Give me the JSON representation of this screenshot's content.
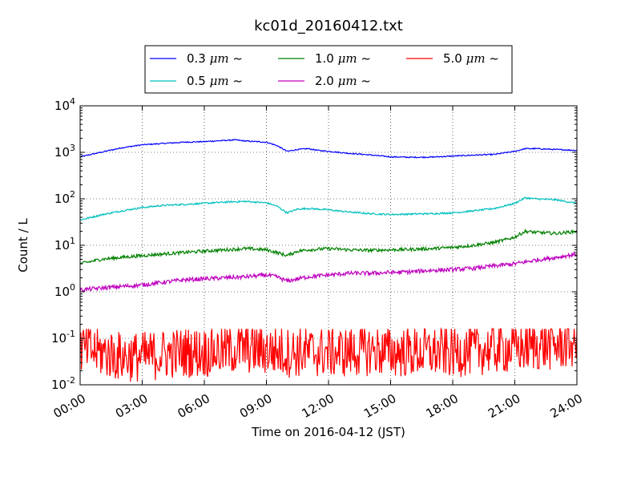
{
  "chart_data": {
    "type": "line",
    "title": "kc01d_20160412.txt",
    "xlabel": "Time on 2016-04-12 (JST)",
    "ylabel": "Count / L",
    "xlim": [
      0,
      24
    ],
    "ylim": [
      0.01,
      10000
    ],
    "yscale": "log",
    "x_ticks": [
      0,
      3,
      6,
      9,
      12,
      15,
      18,
      21,
      24
    ],
    "x_tick_labels": [
      "00:00",
      "03:00",
      "06:00",
      "09:00",
      "12:00",
      "15:00",
      "18:00",
      "21:00",
      "24:00"
    ],
    "y_ticks": [
      0.01,
      0.1,
      1,
      10,
      100,
      1000,
      10000
    ],
    "y_tick_labels": [
      {
        "base": "10",
        "exp": "-2"
      },
      {
        "base": "10",
        "exp": "-1"
      },
      {
        "base": "10",
        "exp": "0"
      },
      {
        "base": "10",
        "exp": "1"
      },
      {
        "base": "10",
        "exp": "2"
      },
      {
        "base": "10",
        "exp": "3"
      },
      {
        "base": "10",
        "exp": "4"
      }
    ],
    "grid": true,
    "legend_position": "top-center (above plot)",
    "series": [
      {
        "name": "0.3 μm ~",
        "legend_label": {
          "value": "0.3 ",
          "unit": "μm",
          "tail": " ~"
        },
        "color": "#0000ff",
        "x": [
          0,
          1,
          2,
          3,
          4,
          5,
          6,
          7,
          7.5,
          8,
          9,
          9.5,
          10,
          10.5,
          11,
          11.5,
          12,
          13,
          14,
          15,
          16,
          17,
          18,
          19,
          20,
          21,
          21.5,
          22,
          23,
          24
        ],
        "y": [
          800,
          1000,
          1250,
          1450,
          1550,
          1650,
          1700,
          1800,
          1850,
          1750,
          1650,
          1400,
          1050,
          1150,
          1200,
          1100,
          1050,
          950,
          880,
          800,
          780,
          790,
          830,
          870,
          900,
          1050,
          1200,
          1200,
          1150,
          1100
        ]
      },
      {
        "name": "0.5 μm ~",
        "legend_label": {
          "value": "0.5 ",
          "unit": "μm",
          "tail": " ~"
        },
        "color": "#00bfbf",
        "x": [
          0,
          1,
          2,
          3,
          4,
          5,
          6,
          7,
          8,
          9,
          9.5,
          10,
          10.5,
          11,
          12,
          13,
          14,
          15,
          16,
          17,
          18,
          19,
          20,
          20.5,
          21,
          21.5,
          22,
          23,
          24
        ],
        "y": [
          35,
          45,
          55,
          65,
          72,
          76,
          80,
          85,
          88,
          82,
          70,
          50,
          60,
          62,
          58,
          52,
          48,
          46,
          47,
          48,
          50,
          55,
          62,
          70,
          80,
          105,
          100,
          95,
          80
        ]
      },
      {
        "name": "1.0 μm ~",
        "legend_label": {
          "value": "1.0 ",
          "unit": "μm",
          "tail": " ~"
        },
        "color": "#008000",
        "x": [
          0,
          1,
          2,
          3,
          4,
          5,
          6,
          7,
          8,
          9,
          9.5,
          10,
          10.5,
          11,
          12,
          13,
          14,
          15,
          16,
          17,
          18,
          19,
          20,
          20.5,
          21,
          21.5,
          22,
          23,
          24
        ],
        "y": [
          4,
          5,
          5.5,
          6,
          6.5,
          7,
          7.5,
          8,
          8.5,
          8,
          7,
          6,
          7.5,
          8,
          8.5,
          8,
          7.8,
          8,
          8.2,
          8.5,
          9,
          10,
          11.5,
          13,
          15,
          20,
          19,
          18,
          20
        ]
      },
      {
        "name": "2.0 μm ~",
        "legend_label": {
          "value": "2.0 ",
          "unit": "μm",
          "tail": " ~"
        },
        "color": "#bf00bf",
        "x": [
          0,
          1,
          2,
          3,
          4,
          5,
          6,
          7,
          8,
          9,
          9.5,
          10,
          10.5,
          11,
          12,
          13,
          14,
          15,
          16,
          17,
          18,
          19,
          20,
          21,
          22,
          23,
          24
        ],
        "y": [
          1.1,
          1.2,
          1.3,
          1.4,
          1.6,
          1.8,
          1.9,
          2.0,
          2.1,
          2.3,
          2.1,
          1.7,
          1.9,
          2.1,
          2.3,
          2.5,
          2.5,
          2.6,
          2.7,
          2.9,
          3.0,
          3.2,
          3.6,
          4.0,
          4.8,
          5.5,
          6.5
        ]
      },
      {
        "name": "5.0 μm ~",
        "legend_label": {
          "value": "5.0 ",
          "unit": "μm",
          "tail": " ~"
        },
        "color": "#ff0000",
        "x": [
          0,
          1,
          2,
          3,
          4,
          5,
          6,
          7,
          8,
          9,
          10,
          11,
          12,
          13,
          14,
          15,
          16,
          17,
          18,
          19,
          20,
          21,
          22,
          23,
          24
        ],
        "y": [
          0.06,
          0.05,
          0.04,
          0.04,
          0.045,
          0.05,
          0.05,
          0.055,
          0.06,
          0.055,
          0.05,
          0.05,
          0.05,
          0.05,
          0.055,
          0.05,
          0.05,
          0.05,
          0.05,
          0.055,
          0.06,
          0.06,
          0.07,
          0.07,
          0.08
        ]
      }
    ]
  }
}
